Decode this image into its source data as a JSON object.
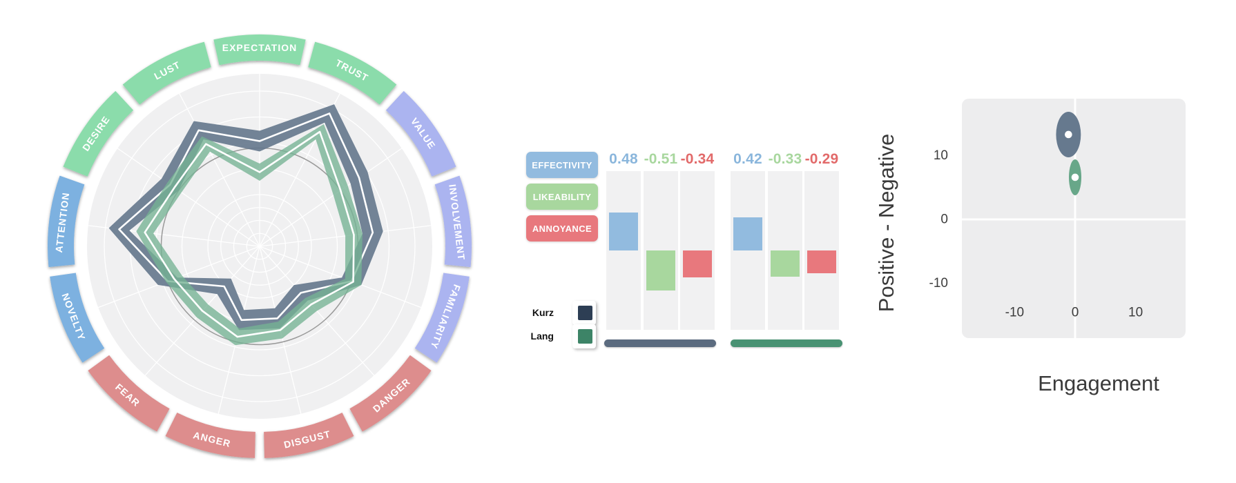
{
  "accent_colors": {
    "arc_green": "#8bdcab",
    "arc_blue": "#7db1e0",
    "arc_purple": "#abb4f0",
    "arc_red": "#dd8d8d",
    "series_kurz": "#64778c",
    "series_lang": "#74b293"
  },
  "chart_data": [
    {
      "type": "radar",
      "title": "",
      "categories": [
        "EXPECTATION",
        "TRUST",
        "VALUE",
        "INVOLVEMENT",
        "FAMILIARITY",
        "DANGER",
        "DISGUST",
        "ANGER",
        "FEAR",
        "NOVELTY",
        "ATTENTION",
        "DESIRE",
        "LUST"
      ],
      "category_colors": [
        "#8bdcab",
        "#8bdcab",
        "#abb4f0",
        "#abb4f0",
        "#abb4f0",
        "#dd8d8d",
        "#dd8d8d",
        "#dd8d8d",
        "#dd8d8d",
        "#7db1e0",
        "#7db1e0",
        "#8bdcab",
        "#8bdcab"
      ],
      "label_flipped": [
        false,
        false,
        false,
        false,
        false,
        true,
        true,
        true,
        true,
        true,
        false,
        false,
        false
      ],
      "scale": [
        0,
        1
      ],
      "reference_circle": 0.57,
      "grid_rings": [
        0.075,
        0.15,
        0.225,
        0.3,
        0.45,
        0.6,
        0.75,
        0.9
      ],
      "series": [
        {
          "name": "Kurz",
          "color": "#64778c",
          "opacity": 0.9,
          "values": [
            0.61,
            0.87,
            0.7,
            0.66,
            0.57,
            0.36,
            0.43,
            0.44,
            0.31,
            0.57,
            0.82,
            0.63,
            0.76
          ],
          "band_halfwidth": 0.06
        },
        {
          "name": "Lang",
          "color": "#74b293",
          "opacity": 0.78,
          "values": [
            0.43,
            0.75,
            0.57,
            0.55,
            0.58,
            0.45,
            0.5,
            0.54,
            0.5,
            0.53,
            0.67,
            0.6,
            0.67
          ],
          "band_halfwidth": 0.05
        }
      ]
    },
    {
      "type": "bar",
      "rows": [
        "EFFECTIVITY",
        "LIKEABILITY",
        "ANNOYANCE"
      ],
      "row_colors": [
        "#92bbdf",
        "#a8d79e",
        "#e8787d"
      ],
      "bar_colors": [
        "#92bbdf",
        "#a8d79e",
        "#e8787d"
      ],
      "value_colors": [
        "#8ab6dc",
        "#a8d79e",
        "#e26a6a"
      ],
      "groups": [
        {
          "name": "Kurz",
          "underline_color": "#5b6b7f",
          "values": [
            0.48,
            -0.51,
            -0.34
          ],
          "labels": [
            "0.48",
            "-0.51",
            "-0.34"
          ]
        },
        {
          "name": "Lang",
          "underline_color": "#499273",
          "values": [
            0.42,
            -0.33,
            -0.29
          ],
          "labels": [
            "0.42",
            "-0.33",
            "-0.29"
          ]
        }
      ],
      "legend": [
        {
          "label": "Kurz",
          "color": "#2d3e54"
        },
        {
          "label": "Lang",
          "color": "#3d8467"
        }
      ]
    },
    {
      "type": "scatter",
      "xlabel": "Engagement",
      "ylabel": "Positive - Negative",
      "xticks": [
        "-10",
        "0",
        "10"
      ],
      "xtick_values": [
        -10,
        0,
        10
      ],
      "yticks": [
        "10",
        "0",
        "-10"
      ],
      "ytick_values": [
        10,
        0,
        -10
      ],
      "xlim": [
        -18.6,
        18.3
      ],
      "ylim": [
        -18.6,
        18.9
      ],
      "grid": "white cross at 0,0 on gray panel",
      "points": [
        {
          "name": "Kurz",
          "x": -1.1,
          "y": 13.3,
          "rx": 2.05,
          "ry": 3.57,
          "color": "#66798e"
        },
        {
          "name": "Lang",
          "x": 0,
          "y": 6.6,
          "rx": 1.03,
          "ry": 2.81,
          "color": "#68a789"
        }
      ]
    }
  ]
}
